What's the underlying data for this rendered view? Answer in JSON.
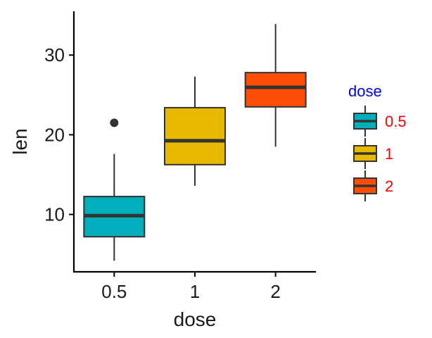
{
  "chart_data": {
    "type": "box",
    "xlabel": "dose",
    "ylabel": "len",
    "categories": [
      "0.5",
      "1",
      "2"
    ],
    "yticks": [
      10,
      20,
      30
    ],
    "ylim": [
      2.8,
      35.5
    ],
    "grid": false,
    "legend_placement": "right",
    "boxes": [
      {
        "category": "0.5",
        "min": 4.2,
        "q1": 7.2,
        "median": 9.85,
        "q3": 12.25,
        "max": 17.6,
        "outliers": [
          21.5
        ],
        "color": "#00AFBB"
      },
      {
        "category": "1",
        "min": 13.6,
        "q1": 16.25,
        "median": 19.25,
        "q3": 23.4,
        "max": 27.3,
        "outliers": [],
        "color": "#E7B800"
      },
      {
        "category": "2",
        "min": 18.5,
        "q1": 23.5,
        "median": 25.95,
        "q3": 27.8,
        "max": 33.9,
        "outliers": [],
        "color": "#FC4E07"
      }
    ],
    "legend": {
      "title": "dose",
      "title_color": "#0000FF",
      "label_color": "#FF0000",
      "entries": [
        {
          "label": "0.5",
          "color": "#00AFBB"
        },
        {
          "label": "1",
          "color": "#E7B800"
        },
        {
          "label": "2",
          "color": "#FC4E07"
        }
      ]
    }
  }
}
